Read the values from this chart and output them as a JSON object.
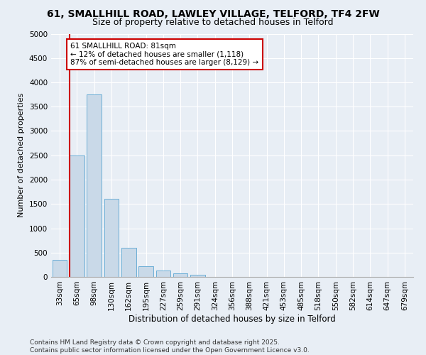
{
  "title1": "61, SMALLHILL ROAD, LAWLEY VILLAGE, TELFORD, TF4 2FW",
  "title2": "Size of property relative to detached houses in Telford",
  "xlabel": "Distribution of detached houses by size in Telford",
  "ylabel": "Number of detached properties",
  "categories": [
    "33sqm",
    "65sqm",
    "98sqm",
    "130sqm",
    "162sqm",
    "195sqm",
    "227sqm",
    "259sqm",
    "291sqm",
    "324sqm",
    "356sqm",
    "388sqm",
    "421sqm",
    "453sqm",
    "485sqm",
    "518sqm",
    "550sqm",
    "582sqm",
    "614sqm",
    "647sqm",
    "679sqm"
  ],
  "values": [
    350,
    2500,
    3750,
    1600,
    600,
    225,
    130,
    75,
    50,
    0,
    0,
    0,
    0,
    0,
    0,
    0,
    0,
    0,
    0,
    0,
    0
  ],
  "bar_color": "#c9d9e8",
  "bar_edge_color": "#6baed6",
  "vline_color": "#cc0000",
  "annotation_text": "61 SMALLHILL ROAD: 81sqm\n← 12% of detached houses are smaller (1,118)\n87% of semi-detached houses are larger (8,129) →",
  "annotation_box_color": "#ffffff",
  "annotation_box_edge": "#cc0000",
  "ylim": [
    0,
    5000
  ],
  "yticks": [
    0,
    500,
    1000,
    1500,
    2000,
    2500,
    3000,
    3500,
    4000,
    4500,
    5000
  ],
  "bg_color": "#e8eef5",
  "plot_bg_color": "#e8eef5",
  "footer": "Contains HM Land Registry data © Crown copyright and database right 2025.\nContains public sector information licensed under the Open Government Licence v3.0.",
  "title1_fontsize": 10,
  "title2_fontsize": 9,
  "xlabel_fontsize": 8.5,
  "ylabel_fontsize": 8,
  "tick_fontsize": 7.5,
  "annotation_fontsize": 7.5,
  "footer_fontsize": 6.5
}
